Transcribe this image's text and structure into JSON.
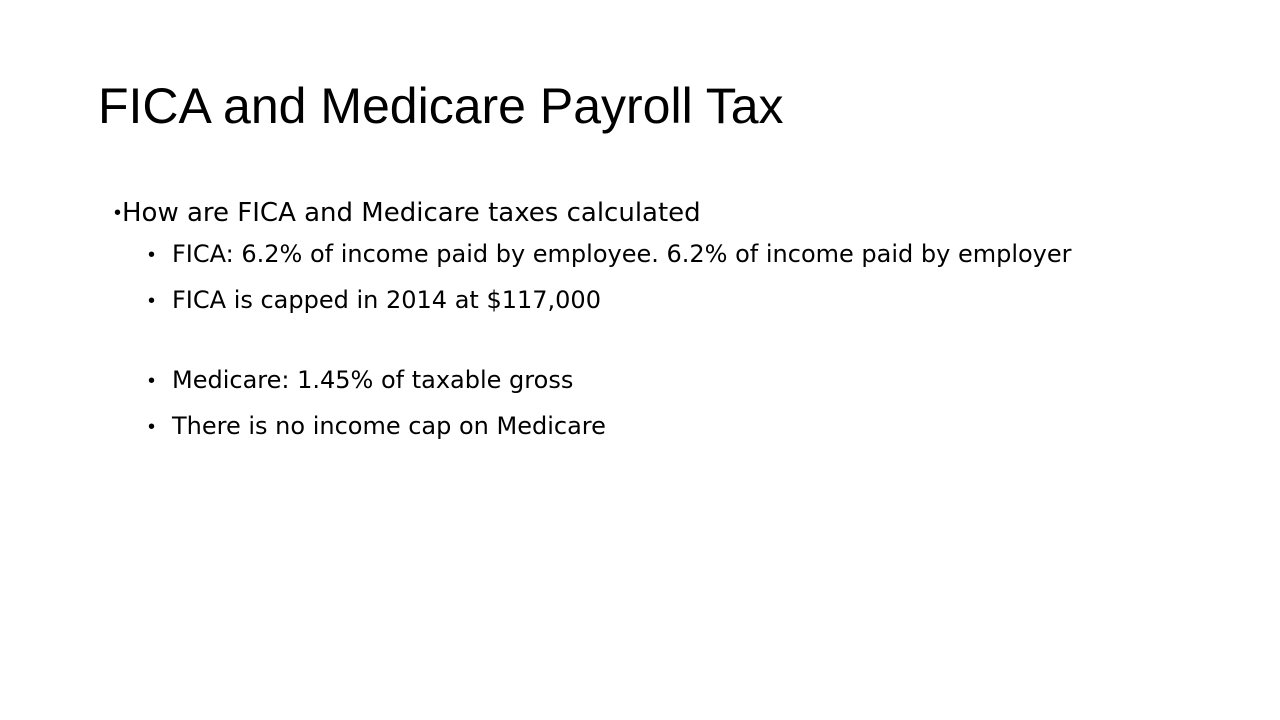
{
  "slide": {
    "title": "FICA and Medicare Payroll Tax",
    "bullets": {
      "level1": {
        "text": "How are FICA and Medicare taxes calculated"
      },
      "level2": [
        {
          "text": "FICA: 6.2% of income paid by employee. 6.2% of income paid by employer"
        },
        {
          "text": "FICA is capped in 2014 at $117,000"
        },
        {
          "text": "Medicare: 1.45% of taxable gross"
        },
        {
          "text": "There is no income cap on Medicare"
        }
      ]
    },
    "colors": {
      "background": "#ffffff",
      "text": "#000000"
    }
  }
}
